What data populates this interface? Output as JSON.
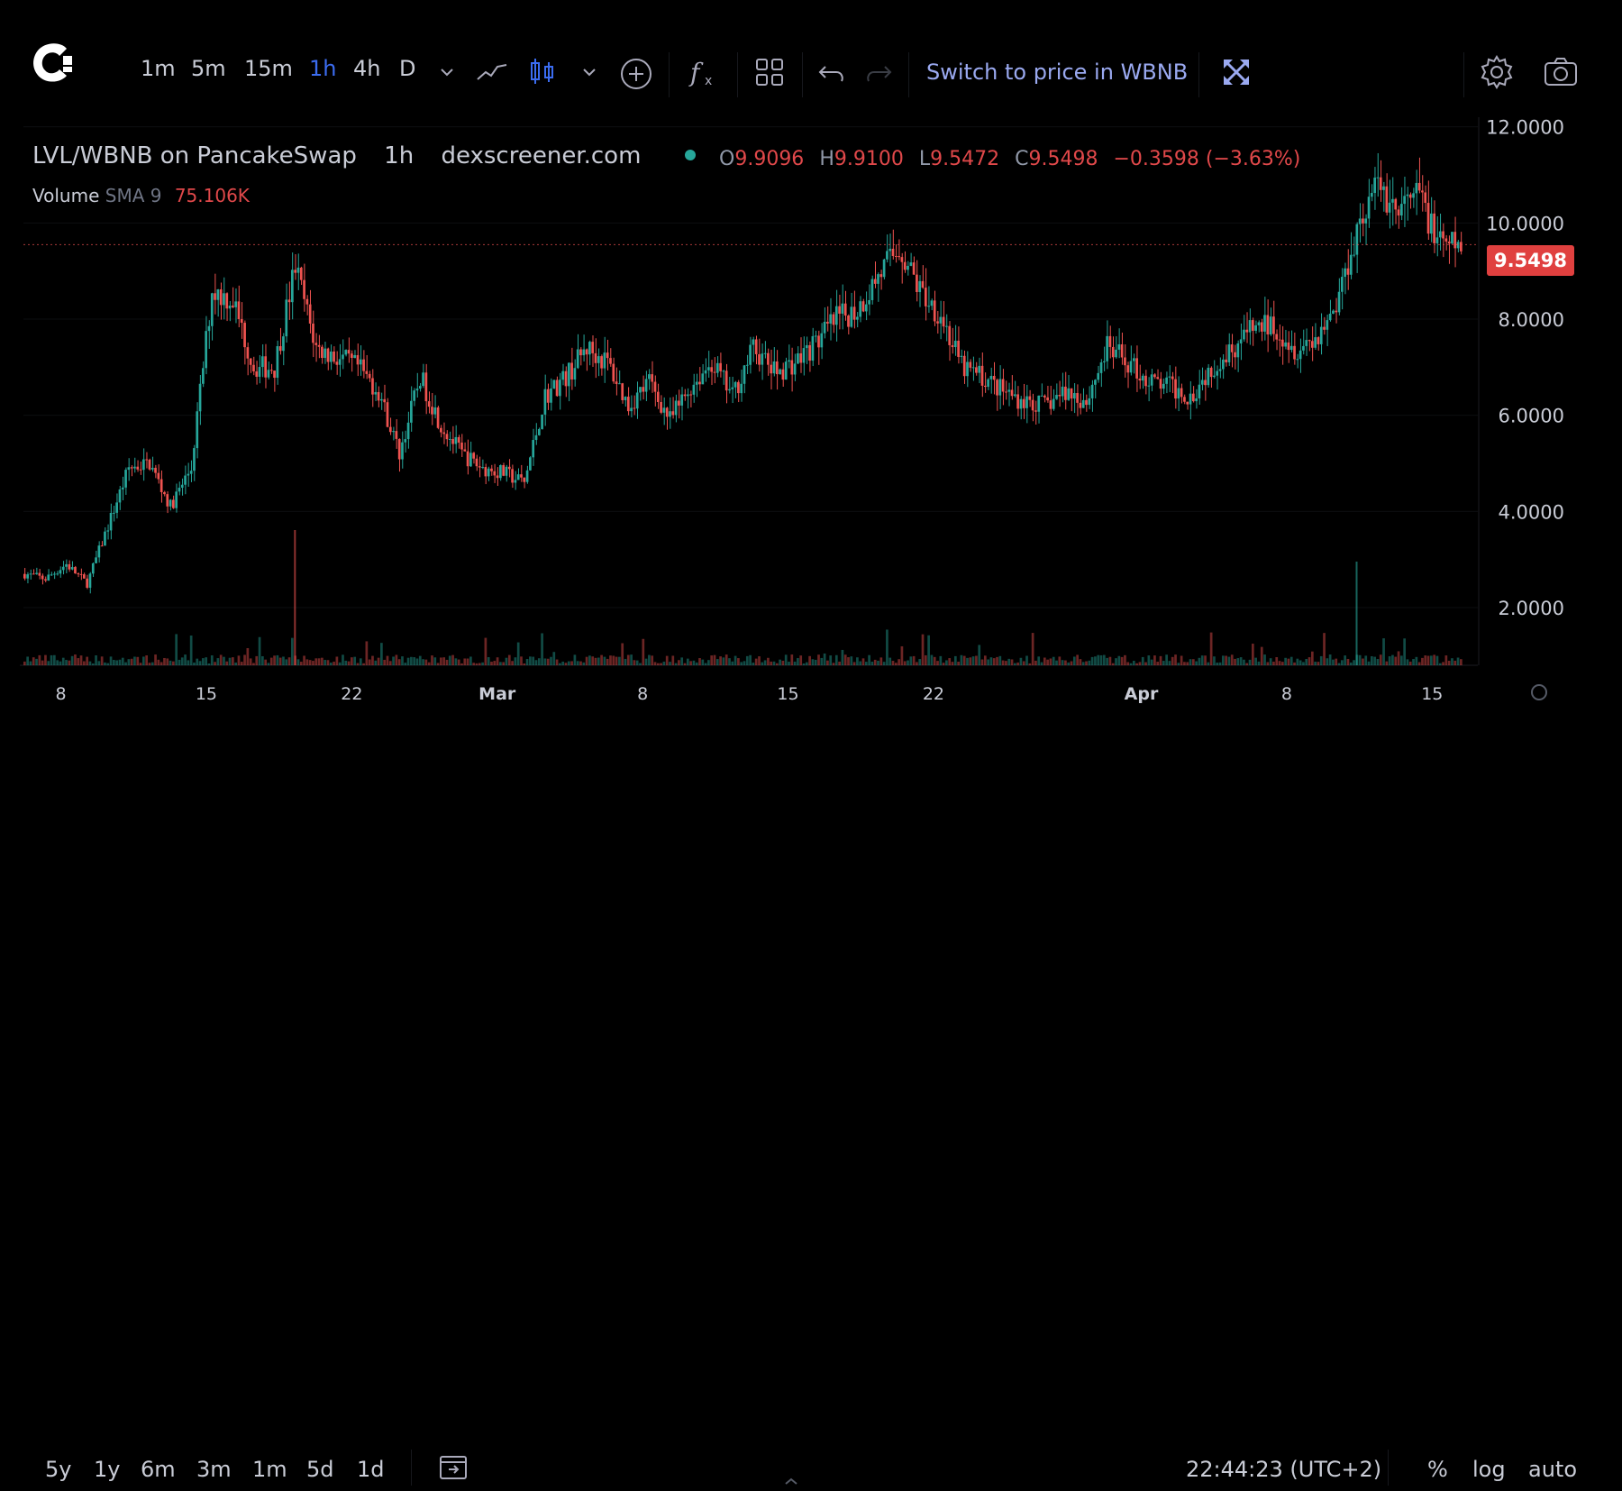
{
  "toolbar": {
    "timeframes": [
      "1m",
      "5m",
      "15m",
      "1h",
      "4h",
      "D"
    ],
    "active_timeframe": "1h",
    "switch_label": "Switch to price in WBNB"
  },
  "legend": {
    "pair": "LVL/WBNB on PancakeSwap",
    "interval": "1h",
    "source": "dexscreener.com",
    "ohlc": {
      "o_label": "O",
      "o": "9.9096",
      "h_label": "H",
      "h": "9.9100",
      "l_label": "L",
      "l": "9.5472",
      "c_label": "C",
      "c": "9.5498",
      "change": "−0.3598 (−3.63%)"
    },
    "volume_label": "Volume",
    "volume_sma": "SMA 9",
    "volume_value": "75.106K"
  },
  "bottom": {
    "ranges": [
      "5y",
      "1y",
      "6m",
      "3m",
      "1m",
      "5d",
      "1d"
    ],
    "clock": "22:44:23 (UTC+2)",
    "percent": "%",
    "log": "log",
    "auto": "auto"
  },
  "colors": {
    "up": "#26a69a",
    "down": "#ef5350",
    "accent": "#3b6cf0",
    "background": "#000000"
  },
  "chart_data": {
    "type": "candlestick",
    "title": "LVL/WBNB on PancakeSwap",
    "interval": "1h",
    "x_tick_labels": [
      "8",
      "15",
      "22",
      "Mar",
      "8",
      "15",
      "22",
      "Apr",
      "8",
      "15"
    ],
    "y_tick_labels": [
      "12.0000",
      "10.0000",
      "8.0000",
      "6.0000",
      "4.0000",
      "2.0000"
    ],
    "ylim": [
      0.8,
      12.2
    ],
    "grid": true,
    "last_price": "9.5498",
    "close_path": [
      [
        "Feb 8",
        2.7
      ],
      [
        "Feb 9",
        2.6
      ],
      [
        "Feb 10",
        2.9
      ],
      [
        "Feb 11",
        2.5
      ],
      [
        "Feb 12",
        3.7
      ],
      [
        "Feb 13",
        4.9
      ],
      [
        "Feb 14",
        5.0
      ],
      [
        "Feb 15",
        4.1
      ],
      [
        "Feb 16",
        4.9
      ],
      [
        "Feb 17",
        8.6
      ],
      [
        "Feb 18",
        8.4
      ],
      [
        "Feb 19",
        7.0
      ],
      [
        "Feb 20",
        7.0
      ],
      [
        "Feb 21",
        9.1
      ],
      [
        "Feb 22",
        7.4
      ],
      [
        "Feb 23",
        7.2
      ],
      [
        "Feb 24",
        7.0
      ],
      [
        "Feb 25",
        6.5
      ],
      [
        "Feb 26",
        5.2
      ],
      [
        "Feb 27",
        6.8
      ],
      [
        "Feb 28",
        5.8
      ],
      [
        "Mar 1",
        5.2
      ],
      [
        "Mar 2",
        4.9
      ],
      [
        "Mar 3",
        4.8
      ],
      [
        "Mar 4",
        4.6
      ],
      [
        "Mar 5",
        6.4
      ],
      [
        "Mar 6",
        6.8
      ],
      [
        "Mar 7",
        7.4
      ],
      [
        "Mar 8",
        7.1
      ],
      [
        "Mar 9",
        6.2
      ],
      [
        "Mar 10",
        6.7
      ],
      [
        "Mar 11",
        5.9
      ],
      [
        "Mar 12",
        6.6
      ],
      [
        "Mar 13",
        7.1
      ],
      [
        "Mar 14",
        6.4
      ],
      [
        "Mar 15",
        7.4
      ],
      [
        "Mar 16",
        6.9
      ],
      [
        "Mar 17",
        7.1
      ],
      [
        "Mar 18",
        7.5
      ],
      [
        "Mar 19",
        8.0
      ],
      [
        "Mar 20",
        8.2
      ],
      [
        "Mar 21",
        8.9
      ],
      [
        "Mar 22",
        9.5
      ],
      [
        "Mar 23",
        8.6
      ],
      [
        "Mar 24",
        8.1
      ],
      [
        "Mar 25",
        7.0
      ],
      [
        "Mar 26",
        6.8
      ],
      [
        "Mar 27",
        6.5
      ],
      [
        "Mar 28",
        6.3
      ],
      [
        "Mar 29",
        6.2
      ],
      [
        "Mar 30",
        6.5
      ],
      [
        "Mar 31",
        6.3
      ],
      [
        "Apr 1",
        7.4
      ],
      [
        "Apr 2",
        7.1
      ],
      [
        "Apr 3",
        6.7
      ],
      [
        "Apr 4",
        6.6
      ],
      [
        "Apr 5",
        6.4
      ],
      [
        "Apr 6",
        7.0
      ],
      [
        "Apr 7",
        7.4
      ],
      [
        "Apr 8",
        7.8
      ],
      [
        "Apr 9",
        7.9
      ],
      [
        "Apr 10",
        7.4
      ],
      [
        "Apr 11",
        7.6
      ],
      [
        "Apr 12",
        8.3
      ],
      [
        "Apr 13",
        9.9
      ],
      [
        "Apr 14",
        10.8
      ],
      [
        "Apr 15",
        10.2
      ],
      [
        "Apr 16",
        10.6
      ],
      [
        "Apr 17",
        9.5
      ],
      [
        "Apr 18",
        9.55
      ]
    ],
    "volume_spikes": [
      [
        "Feb 21",
        "large"
      ],
      [
        "Apr 13",
        "large"
      ]
    ]
  }
}
